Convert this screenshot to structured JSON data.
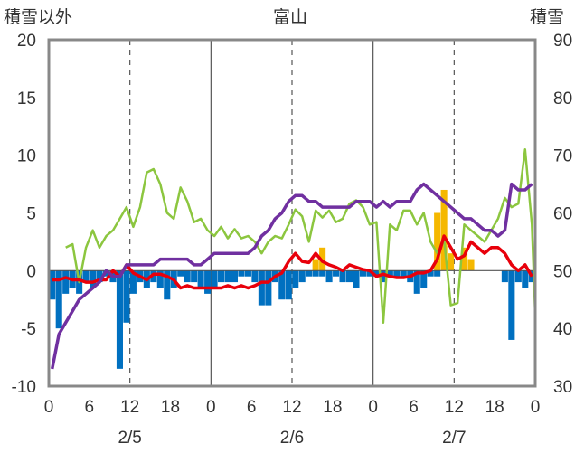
{
  "chart_data": {
    "type": "bar+line",
    "title": "富山",
    "y_left_label": "積雪以外",
    "y_right_label": "積雪",
    "y_left_ticks": [
      "20",
      "15",
      "10",
      "5",
      "0",
      "-5",
      "-10"
    ],
    "y_right_ticks": [
      "90",
      "80",
      "70",
      "60",
      "50",
      "40",
      "30"
    ],
    "y_left_range": [
      -10,
      20
    ],
    "y_right_range": [
      30,
      90
    ],
    "x_ticks": [
      "0",
      "6",
      "12",
      "18",
      "0",
      "6",
      "12",
      "18",
      "0",
      "6",
      "12",
      "18",
      "0"
    ],
    "date_labels": [
      "2/5",
      "2/6",
      "2/7"
    ],
    "x_range_hours": [
      0,
      72
    ],
    "grid": "dashed vertical at 12h, solid vertical at 24h/48h",
    "series": [
      {
        "id": "temperature",
        "color": "#8cc63f",
        "axis": "left",
        "kind": "line",
        "points": [
          [
            2,
            2
          ],
          [
            3,
            2.3
          ],
          [
            4,
            -1
          ],
          [
            5,
            2
          ],
          [
            6,
            3.5
          ],
          [
            7,
            2
          ],
          [
            8,
            3
          ],
          [
            9,
            3.5
          ],
          [
            10,
            4.5
          ],
          [
            11,
            5.5
          ],
          [
            12,
            3.8
          ],
          [
            13,
            5.5
          ],
          [
            14,
            8.5
          ],
          [
            15,
            8.8
          ],
          [
            16,
            7.5
          ],
          [
            17,
            5
          ],
          [
            18,
            4.5
          ],
          [
            19,
            7.2
          ],
          [
            20,
            6
          ],
          [
            21,
            4.2
          ],
          [
            22,
            4.5
          ],
          [
            23,
            3.5
          ],
          [
            24,
            3
          ],
          [
            25,
            3.8
          ],
          [
            26,
            2.8
          ],
          [
            27,
            3.6
          ],
          [
            28,
            2.8
          ],
          [
            29,
            3
          ],
          [
            30,
            2.5
          ],
          [
            31,
            1.5
          ],
          [
            32,
            2.5
          ],
          [
            33,
            3
          ],
          [
            34,
            2.8
          ],
          [
            35,
            4
          ],
          [
            36,
            5.3
          ],
          [
            37,
            4.7
          ],
          [
            38,
            2.5
          ],
          [
            39,
            5.2
          ],
          [
            40,
            4.6
          ],
          [
            41,
            5.2
          ],
          [
            42,
            4.2
          ],
          [
            43,
            4.5
          ],
          [
            44,
            5.8
          ],
          [
            45,
            6.1
          ],
          [
            46,
            5.5
          ],
          [
            47,
            4
          ],
          [
            48,
            4.2
          ],
          [
            49,
            -4.5
          ],
          [
            50,
            4
          ],
          [
            51,
            3.5
          ],
          [
            52,
            5.2
          ],
          [
            53,
            5.2
          ],
          [
            54,
            4
          ],
          [
            55,
            5
          ],
          [
            56,
            2.5
          ],
          [
            57,
            1.5
          ],
          [
            58,
            2.8
          ],
          [
            59,
            -3
          ],
          [
            60,
            -2.8
          ],
          [
            61,
            4
          ],
          [
            62,
            3.5
          ],
          [
            63,
            3
          ],
          [
            64,
            2.5
          ],
          [
            65,
            3.5
          ],
          [
            66,
            4.5
          ],
          [
            67,
            6.3
          ],
          [
            68,
            5.5
          ],
          [
            69,
            5.8
          ],
          [
            70,
            10.5
          ],
          [
            71,
            4
          ],
          [
            71.5,
            -3.8
          ]
        ]
      },
      {
        "id": "wind_speed",
        "color": "#e8000b",
        "axis": "left",
        "kind": "line",
        "points": [
          [
            0,
            -0.8
          ],
          [
            1,
            -0.8
          ],
          [
            2,
            -0.6
          ],
          [
            3,
            -0.8
          ],
          [
            4,
            -0.8
          ],
          [
            5,
            -1
          ],
          [
            6,
            -1
          ],
          [
            7,
            -0.8
          ],
          [
            8,
            -0.8
          ],
          [
            9,
            0
          ],
          [
            10,
            -0.5
          ],
          [
            11,
            0.5
          ],
          [
            12,
            -0.2
          ],
          [
            13,
            -0.5
          ],
          [
            14,
            -0.8
          ],
          [
            15,
            -0.3
          ],
          [
            16,
            -0.3
          ],
          [
            17,
            -0.5
          ],
          [
            18,
            -0.8
          ],
          [
            19,
            -1.5
          ],
          [
            20,
            -1.3
          ],
          [
            21,
            -1.5
          ],
          [
            22,
            -1.5
          ],
          [
            23,
            -1.5
          ],
          [
            24,
            -1.5
          ],
          [
            25,
            -1.5
          ],
          [
            26,
            -1.3
          ],
          [
            27,
            -1.5
          ],
          [
            28,
            -1.3
          ],
          [
            29,
            -1.5
          ],
          [
            30,
            -1.3
          ],
          [
            31,
            -1
          ],
          [
            32,
            -1
          ],
          [
            33,
            -0.5
          ],
          [
            34,
            -0.2
          ],
          [
            35,
            0.8
          ],
          [
            36,
            1.5
          ],
          [
            37,
            0.8
          ],
          [
            38,
            0.7
          ],
          [
            39,
            1.5
          ],
          [
            40,
            0.8
          ],
          [
            41,
            0.5
          ],
          [
            42,
            0.3
          ],
          [
            43,
            0
          ],
          [
            44,
            0.5
          ],
          [
            45,
            0.3
          ],
          [
            46,
            0.1
          ],
          [
            47,
            0
          ],
          [
            48,
            -0.5
          ],
          [
            49,
            -0.3
          ],
          [
            50,
            -0.5
          ],
          [
            51,
            -0.6
          ],
          [
            52,
            -0.6
          ],
          [
            53,
            -0.5
          ],
          [
            54,
            -0.2
          ],
          [
            55,
            -0.2
          ],
          [
            56,
            0
          ],
          [
            57,
            1
          ],
          [
            58,
            3
          ],
          [
            59,
            2
          ],
          [
            60,
            1
          ],
          [
            61,
            1.3
          ],
          [
            62,
            2.5
          ],
          [
            63,
            2
          ],
          [
            64,
            1.5
          ],
          [
            65,
            2
          ],
          [
            66,
            2
          ],
          [
            67,
            1.5
          ],
          [
            68,
            0.5
          ],
          [
            69,
            0
          ],
          [
            70,
            0.5
          ],
          [
            71,
            -0.5
          ]
        ]
      },
      {
        "id": "snow_depth",
        "color": "#7030a0",
        "axis": "right",
        "kind": "line",
        "points": [
          [
            0,
            33
          ],
          [
            1,
            39
          ],
          [
            2,
            41
          ],
          [
            3,
            43
          ],
          [
            4,
            45
          ],
          [
            5,
            46
          ],
          [
            6,
            47
          ],
          [
            7,
            48
          ],
          [
            8,
            50
          ],
          [
            9,
            49
          ],
          [
            10,
            49
          ],
          [
            11,
            51
          ],
          [
            12,
            51
          ],
          [
            13,
            51
          ],
          [
            14,
            51
          ],
          [
            15,
            51
          ],
          [
            16,
            52
          ],
          [
            17,
            52
          ],
          [
            18,
            52
          ],
          [
            19,
            52
          ],
          [
            20,
            52
          ],
          [
            21,
            51
          ],
          [
            22,
            51
          ],
          [
            23,
            52
          ],
          [
            24,
            53
          ],
          [
            25,
            53
          ],
          [
            26,
            53
          ],
          [
            27,
            53
          ],
          [
            28,
            53
          ],
          [
            29,
            53
          ],
          [
            30,
            54
          ],
          [
            31,
            56
          ],
          [
            32,
            57
          ],
          [
            33,
            59
          ],
          [
            34,
            60
          ],
          [
            35,
            62
          ],
          [
            36,
            63
          ],
          [
            37,
            63
          ],
          [
            38,
            62
          ],
          [
            39,
            62
          ],
          [
            40,
            61
          ],
          [
            41,
            61
          ],
          [
            42,
            61
          ],
          [
            43,
            61
          ],
          [
            44,
            61
          ],
          [
            45,
            62
          ],
          [
            46,
            62
          ],
          [
            47,
            62
          ],
          [
            48,
            61
          ],
          [
            49,
            62
          ],
          [
            50,
            61
          ],
          [
            51,
            62
          ],
          [
            52,
            62
          ],
          [
            53,
            62
          ],
          [
            54,
            64
          ],
          [
            55,
            65
          ],
          [
            56,
            64
          ],
          [
            57,
            63
          ],
          [
            58,
            62
          ],
          [
            59,
            61
          ],
          [
            60,
            60
          ],
          [
            61,
            59
          ],
          [
            62,
            59
          ],
          [
            63,
            58
          ],
          [
            64,
            57
          ],
          [
            65,
            57
          ],
          [
            66,
            56
          ],
          [
            67,
            57
          ],
          [
            68,
            65
          ],
          [
            69,
            64
          ],
          [
            70,
            64
          ],
          [
            71,
            65
          ]
        ]
      },
      {
        "id": "precipitation",
        "color": "#f5b800",
        "axis": "left",
        "kind": "bar",
        "points": [
          [
            39,
            1
          ],
          [
            40,
            2
          ],
          [
            57,
            5
          ],
          [
            58,
            7
          ],
          [
            59,
            1.5
          ],
          [
            61,
            2
          ],
          [
            62,
            1
          ]
        ]
      },
      {
        "id": "sunshine",
        "color": "#0070c0",
        "axis": "left",
        "kind": "bar",
        "points": [
          [
            0,
            -2.5
          ],
          [
            1,
            -5
          ],
          [
            2,
            -2
          ],
          [
            3,
            -1.5
          ],
          [
            4,
            -2
          ],
          [
            5,
            -1
          ],
          [
            6,
            -1.5
          ],
          [
            7,
            -1
          ],
          [
            8,
            -0.5
          ],
          [
            9,
            -1
          ],
          [
            10,
            -8.5
          ],
          [
            11,
            -4.5
          ],
          [
            12,
            -2
          ],
          [
            13,
            -1
          ],
          [
            14,
            -1.5
          ],
          [
            15,
            -1
          ],
          [
            16,
            -1.5
          ],
          [
            17,
            -2.5
          ],
          [
            18,
            -1.5
          ],
          [
            19,
            -0.5
          ],
          [
            20,
            -1
          ],
          [
            21,
            -1
          ],
          [
            22,
            -1.5
          ],
          [
            23,
            -2
          ],
          [
            24,
            -1.5
          ],
          [
            25,
            -1
          ],
          [
            26,
            -1
          ],
          [
            27,
            -1
          ],
          [
            28,
            -0.5
          ],
          [
            29,
            -0.5
          ],
          [
            30,
            -1
          ],
          [
            31,
            -3
          ],
          [
            32,
            -3
          ],
          [
            33,
            -1
          ],
          [
            34,
            -2.5
          ],
          [
            35,
            -2.5
          ],
          [
            36,
            -1.5
          ],
          [
            37,
            -1
          ],
          [
            38,
            -0.5
          ],
          [
            39,
            -0.5
          ],
          [
            40,
            -0.5
          ],
          [
            41,
            -1
          ],
          [
            42,
            -0.5
          ],
          [
            43,
            -1
          ],
          [
            44,
            -1
          ],
          [
            45,
            -1.5
          ],
          [
            46,
            -0.5
          ],
          [
            47,
            -0.5
          ],
          [
            48,
            -0.5
          ],
          [
            49,
            -1
          ],
          [
            50,
            -0.5
          ],
          [
            51,
            -0.5
          ],
          [
            52,
            -0.5
          ],
          [
            53,
            -1
          ],
          [
            54,
            -2
          ],
          [
            55,
            -1.5
          ],
          [
            56,
            -0.5
          ],
          [
            57,
            -0.5
          ],
          [
            67,
            -1
          ],
          [
            68,
            -6
          ],
          [
            69,
            -1
          ],
          [
            70,
            -1.5
          ],
          [
            71,
            -1
          ]
        ]
      }
    ]
  }
}
